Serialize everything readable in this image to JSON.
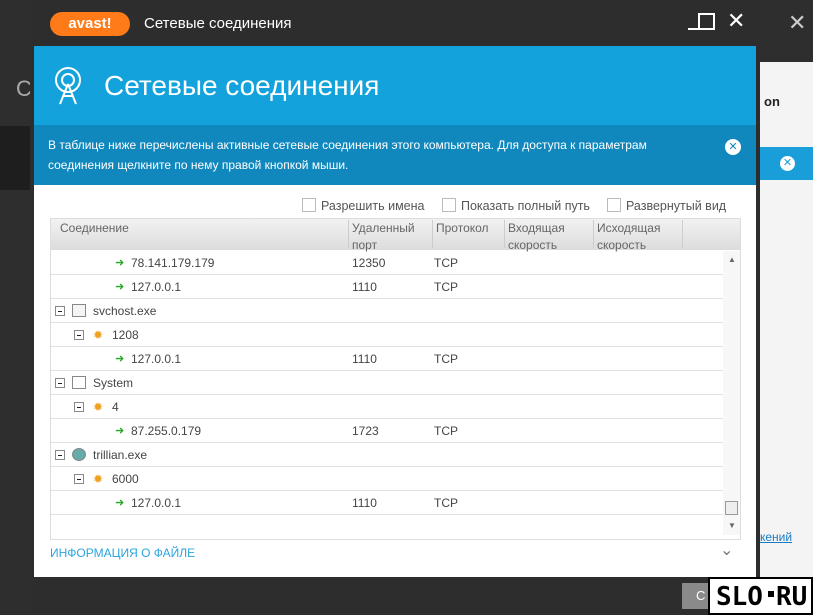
{
  "window": {
    "logo": "avast!",
    "title": "Сетевые соединения"
  },
  "header": {
    "title": "Сетевые соединения"
  },
  "info": {
    "text": "В таблице ниже перечислены активные сетевые соединения этого компьютера. Для доступа к параметрам соединения щелкните по нему правой кнопкой мыши."
  },
  "options": [
    "Разрешить имена",
    "Показать полный путь",
    "Развернутый вид"
  ],
  "table": {
    "columns": [
      "Соединение",
      "Удаленный порт",
      "Протокол",
      "Входящая скорость",
      "Исходящая скорость"
    ],
    "rows": [
      [
        "78.141.179.179",
        "12350",
        "TCP"
      ],
      [
        "127.0.0.1",
        "1110",
        "TCP"
      ],
      [
        "svchost.exe"
      ],
      [
        "1208"
      ],
      [
        "127.0.0.1",
        "1110",
        "TCP"
      ],
      [
        "System"
      ],
      [
        "4"
      ],
      [
        "87.255.0.179",
        "1723",
        "TCP"
      ],
      [
        "trillian.exe"
      ],
      [
        "6000"
      ],
      [
        "127.0.0.1",
        "1110",
        "TCP"
      ]
    ]
  },
  "file_info": "ИНФОРМАЦИЯ О ФАЙЛЕ",
  "button": "С",
  "background": {
    "letter": "С",
    "tab": "on",
    "link": "кений"
  },
  "watermark": [
    "SLO",
    "RU"
  ]
}
